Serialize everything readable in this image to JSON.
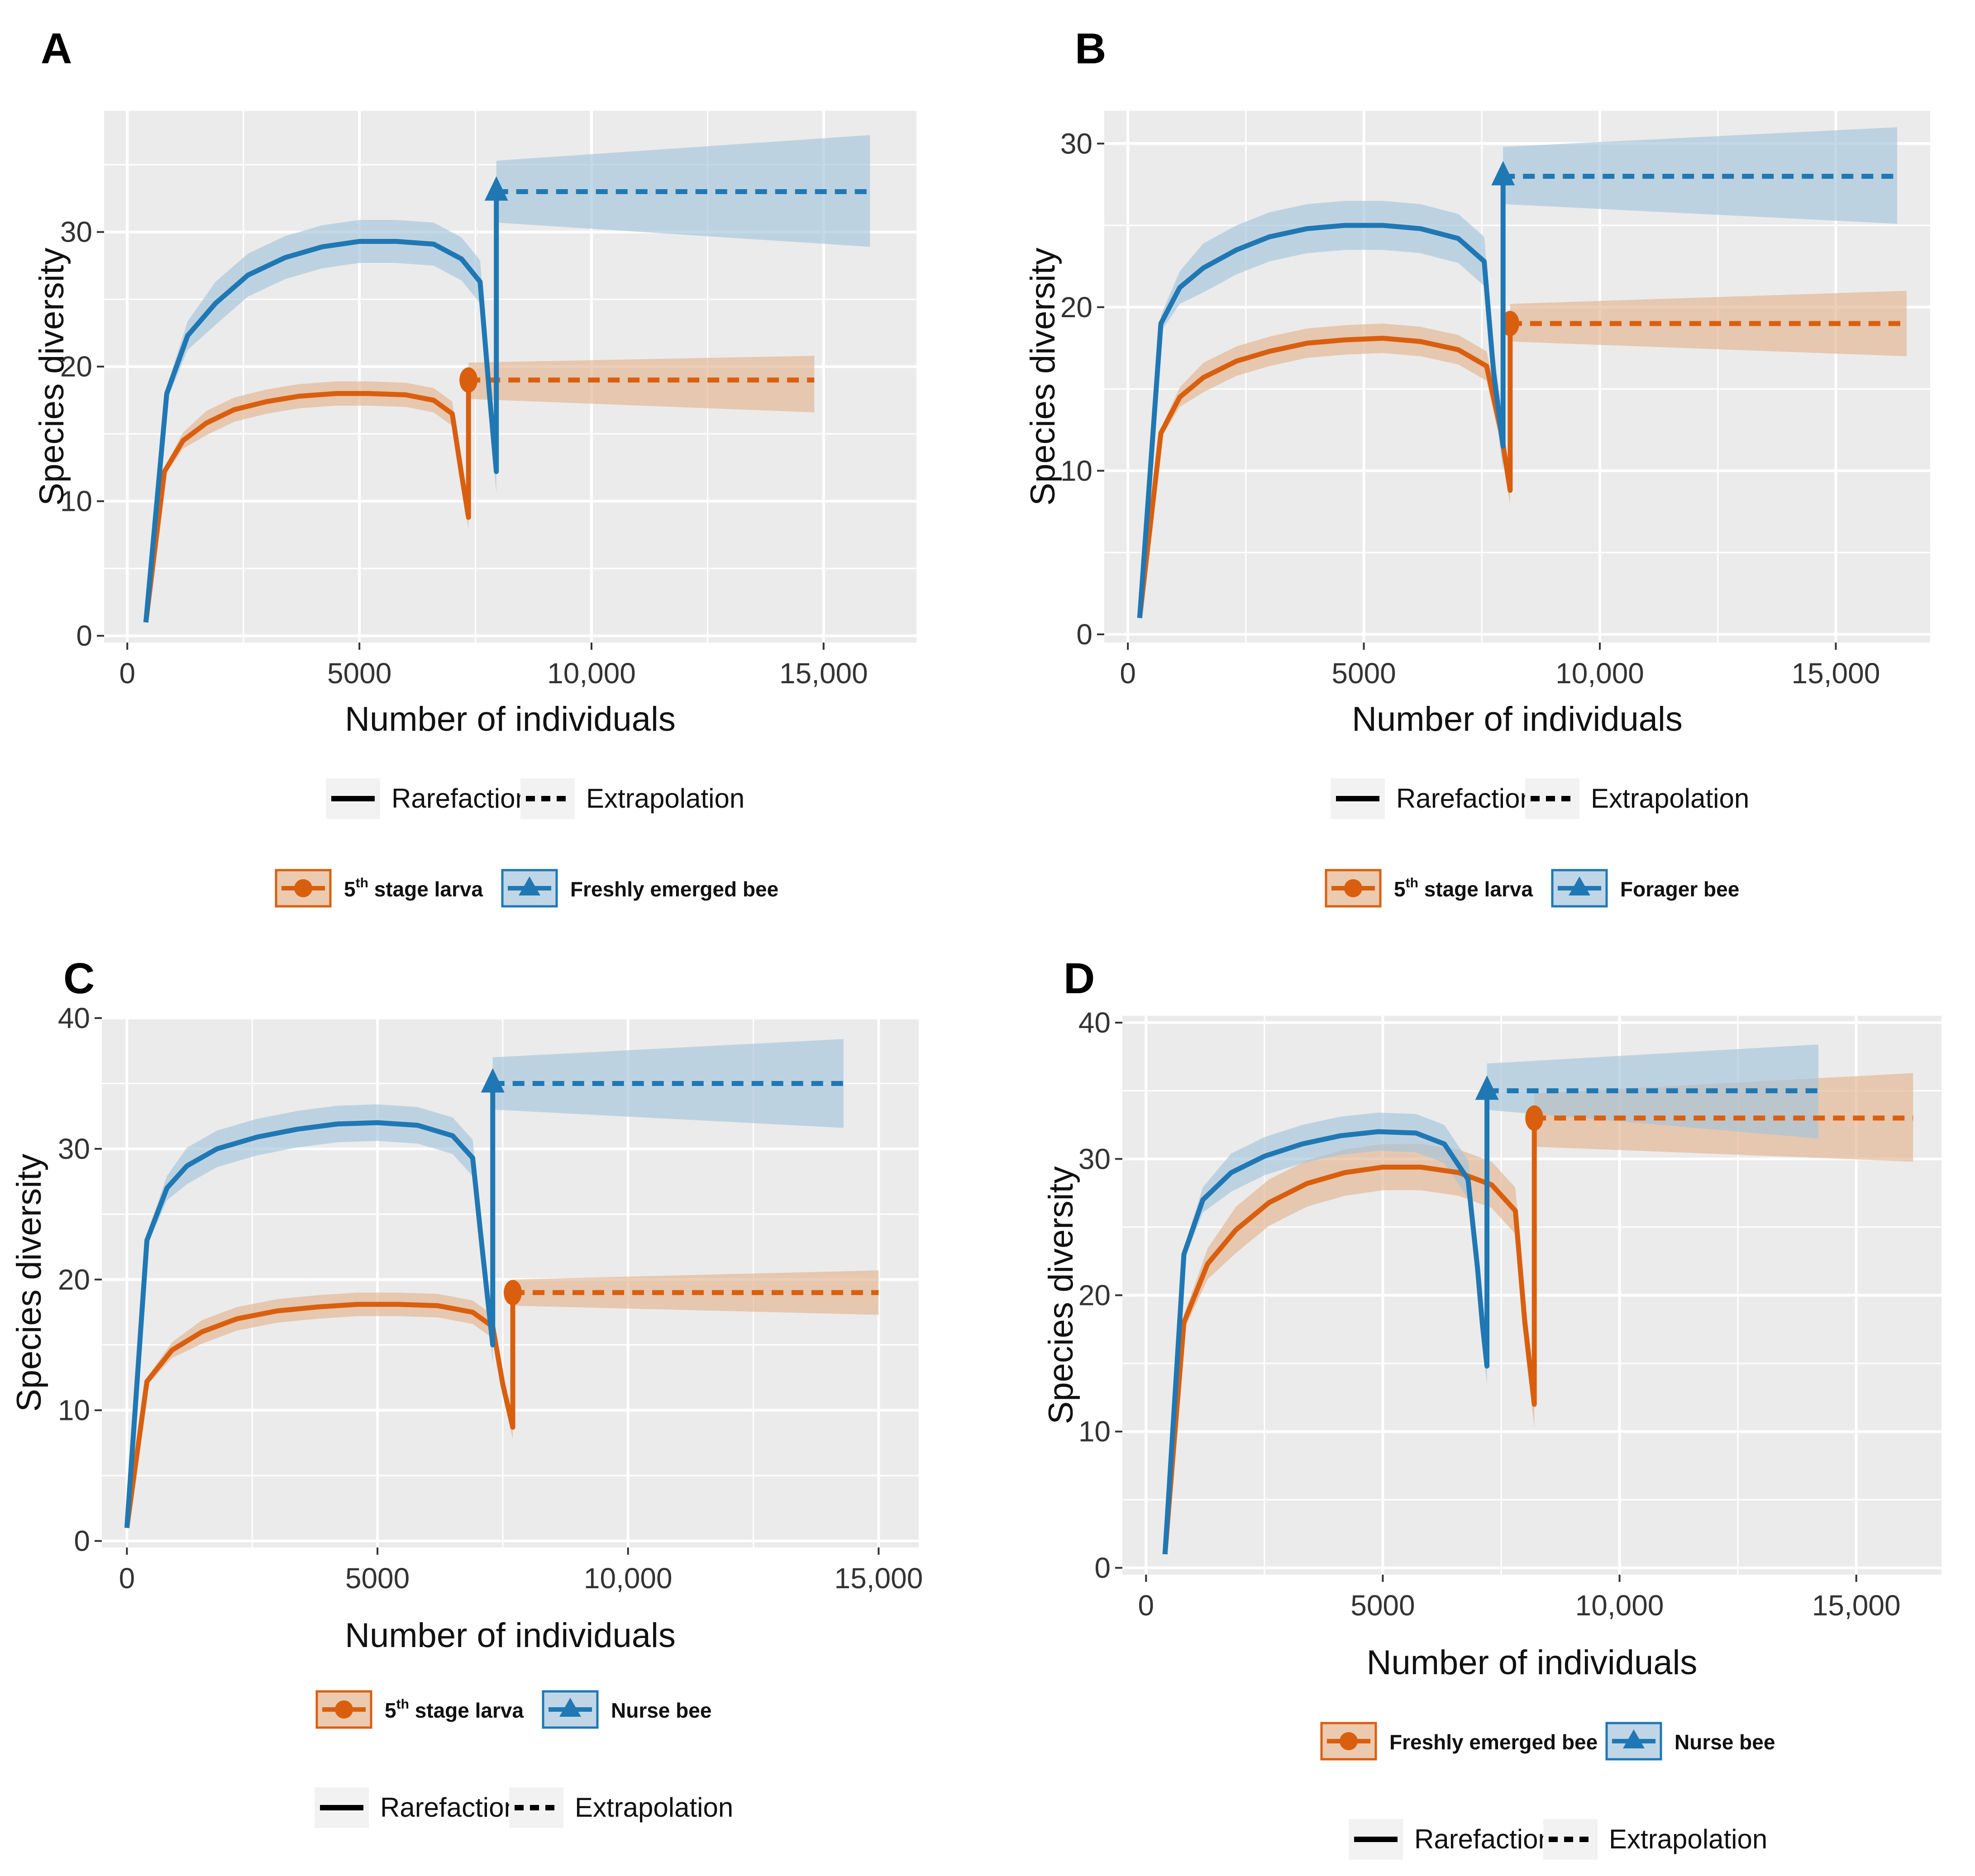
{
  "figure": {
    "colors": {
      "orange": "#d95f0e",
      "blue": "#1f78b4",
      "orange_fill": "#e3b48f",
      "blue_fill": "#a5c4db",
      "panel_bg": "#ebebeb",
      "grid": "#ffffff"
    },
    "legend_lines": {
      "rarefaction": "Rarefaction",
      "extrapolation": "Extrapolation"
    }
  },
  "chart_data": [
    {
      "panel": "A",
      "type": "line",
      "title": "",
      "xlabel": "Number of individuals",
      "ylabel": "Species diversity",
      "xlim": [
        -500,
        17000
      ],
      "ylim": [
        -0.5,
        39
      ],
      "xticks": [
        0,
        5000,
        10000,
        15000
      ],
      "xtick_labels": [
        "0",
        "5000",
        "10,000",
        "15,000"
      ],
      "yticks": [
        0,
        10,
        20,
        30
      ],
      "ytick_labels": [
        "0",
        "10",
        "20",
        "30"
      ],
      "series": [
        {
          "name": "5th stage larva",
          "sup": "th",
          "base": "5",
          "rest": " stage larva",
          "color": "orange",
          "marker": "circle",
          "rarefaction": {
            "x": [
              400,
              800,
              1200,
              1700,
              2300,
              3000,
              3700,
              4500,
              5200,
              6000,
              6600,
              7000,
              7200,
              7350
            ],
            "y": [
              1,
              12.2,
              14.5,
              15.8,
              16.8,
              17.4,
              17.8,
              18.0,
              18.0,
              17.9,
              17.5,
              16.5,
              12,
              8.8
            ],
            "half_band": 0.9
          },
          "observed": {
            "x": 7350,
            "y": 19
          },
          "extrapolation": {
            "x": [
              7350,
              14800
            ],
            "y": [
              19,
              19
            ],
            "band_lo": [
              17.6,
              16.6
            ],
            "band_hi": [
              20.3,
              20.8
            ]
          }
        },
        {
          "name": "Freshly emerged bee",
          "color": "blue",
          "marker": "triangle",
          "rarefaction": {
            "x": [
              400,
              850,
              1300,
              1900,
              2600,
              3400,
              4200,
              5000,
              5800,
              6600,
              7200,
              7600,
              7800,
              7950
            ],
            "y": [
              1,
              18,
              22.3,
              24.7,
              26.8,
              28.1,
              28.9,
              29.3,
              29.3,
              29.1,
              28,
              26.3,
              18,
              12.2
            ],
            "half_band": 1.6
          },
          "observed": {
            "x": 7950,
            "y": 33
          },
          "extrapolation": {
            "x": [
              7950,
              16000
            ],
            "y": [
              33,
              33
            ],
            "band_lo": [
              30.7,
              28.9
            ],
            "band_hi": [
              35.3,
              37.2
            ]
          }
        }
      ]
    },
    {
      "panel": "B",
      "type": "line",
      "title": "",
      "xlabel": "Number of individuals",
      "ylabel": "Species diversity",
      "xlim": [
        -500,
        17000
      ],
      "ylim": [
        -0.5,
        32
      ],
      "xticks": [
        0,
        5000,
        10000,
        15000
      ],
      "xtick_labels": [
        "0",
        "5000",
        "10,000",
        "15,000"
      ],
      "yticks": [
        0,
        10,
        20,
        30
      ],
      "ytick_labels": [
        "0",
        "10",
        "20",
        "30"
      ],
      "series": [
        {
          "name": "5th stage larva",
          "base": "5",
          "sup": "th",
          "rest": " stage larva",
          "color": "orange",
          "marker": "circle",
          "rarefaction": {
            "x": [
              250,
              700,
              1100,
              1600,
              2300,
              3000,
              3800,
              4600,
              5400,
              6200,
              7000,
              7600,
              7900,
              8100
            ],
            "y": [
              1,
              12.3,
              14.5,
              15.7,
              16.7,
              17.3,
              17.8,
              18.0,
              18.1,
              17.9,
              17.4,
              16.4,
              12.5,
              8.8
            ],
            "half_band": 0.9
          },
          "observed": {
            "x": 8100,
            "y": 19
          },
          "extrapolation": {
            "x": [
              8100,
              16500
            ],
            "y": [
              19,
              19
            ],
            "band_lo": [
              17.9,
              17.0
            ],
            "band_hi": [
              20.2,
              21.0
            ]
          }
        },
        {
          "name": "Forager bee",
          "color": "blue",
          "marker": "triangle",
          "rarefaction": {
            "x": [
              250,
              700,
              1100,
              1600,
              2300,
              3000,
              3800,
              4600,
              5400,
              6200,
              7000,
              7550,
              7750,
              7950
            ],
            "y": [
              1,
              19,
              21.2,
              22.4,
              23.5,
              24.3,
              24.8,
              25.0,
              25.0,
              24.8,
              24.2,
              22.8,
              16,
              11.5
            ],
            "half_band": 1.5
          },
          "observed": {
            "x": 7950,
            "y": 28
          },
          "extrapolation": {
            "x": [
              7950,
              16300
            ],
            "y": [
              28,
              28
            ],
            "band_lo": [
              26.3,
              25.1
            ],
            "band_hi": [
              29.8,
              31.0
            ]
          }
        }
      ]
    },
    {
      "panel": "C",
      "type": "line",
      "title": "",
      "xlabel": "Number of individuals",
      "ylabel": "Species diversity",
      "xlim": [
        -500,
        15800
      ],
      "ylim": [
        -0.5,
        40
      ],
      "xticks": [
        0,
        5000,
        10000,
        15000
      ],
      "xtick_labels": [
        "0",
        "5000",
        "10,000",
        "15,000"
      ],
      "yticks": [
        0,
        10,
        20,
        30,
        40
      ],
      "ytick_labels": [
        "0",
        "10",
        "20",
        "30",
        "40"
      ],
      "series": [
        {
          "name": "5th stage larva",
          "base": "5",
          "sup": "th",
          "rest": " stage larva",
          "color": "orange",
          "marker": "circle",
          "rarefaction": {
            "x": [
              0,
              400,
              900,
              1500,
              2200,
              3000,
              3800,
              4600,
              5400,
              6200,
              6900,
              7300,
              7500,
              7700
            ],
            "y": [
              1,
              12.2,
              14.6,
              16.0,
              17.0,
              17.6,
              17.9,
              18.1,
              18.1,
              18.0,
              17.5,
              16.4,
              12,
              8.7
            ],
            "half_band": 0.9
          },
          "observed": {
            "x": 7700,
            "y": 19
          },
          "extrapolation": {
            "x": [
              7700,
              15000
            ],
            "y": [
              19,
              19
            ],
            "band_lo": [
              18.0,
              17.3
            ],
            "band_hi": [
              20.0,
              20.7
            ]
          }
        },
        {
          "name": "Nurse bee",
          "color": "blue",
          "marker": "triangle",
          "rarefaction": {
            "x": [
              0,
              400,
              800,
              1200,
              1800,
              2600,
              3400,
              4200,
              5000,
              5800,
              6500,
              6900,
              7100,
              7300
            ],
            "y": [
              1,
              23,
              27,
              28.7,
              30,
              30.9,
              31.5,
              31.9,
              32.0,
              31.8,
              31.0,
              29.3,
              22,
              15
            ],
            "half_band": 1.4
          },
          "observed": {
            "x": 7300,
            "y": 35
          },
          "extrapolation": {
            "x": [
              7300,
              14300
            ],
            "y": [
              35,
              35
            ],
            "band_lo": [
              33.0,
              31.6
            ],
            "band_hi": [
              37.0,
              38.4
            ]
          }
        }
      ]
    },
    {
      "panel": "D",
      "type": "line",
      "title": "",
      "xlabel": "Number of individuals",
      "ylabel": "Species diversity",
      "xlim": [
        -500,
        16800
      ],
      "ylim": [
        -0.5,
        40.5
      ],
      "xticks": [
        0,
        5000,
        10000,
        15000
      ],
      "xtick_labels": [
        "0",
        "5000",
        "10,000",
        "15,000"
      ],
      "yticks": [
        0,
        10,
        20,
        30,
        40
      ],
      "ytick_labels": [
        "0",
        "10",
        "20",
        "30",
        "40"
      ],
      "series": [
        {
          "name": "Freshly emerged bee",
          "color": "orange",
          "marker": "circle",
          "rarefaction": {
            "x": [
              400,
              800,
              1300,
              1900,
              2600,
              3400,
              4200,
              5000,
              5800,
              6600,
              7300,
              7800,
              8000,
              8200
            ],
            "y": [
              1,
              18,
              22.3,
              24.8,
              26.8,
              28.2,
              29.0,
              29.4,
              29.4,
              29.0,
              28.1,
              26.2,
              18,
              12
            ],
            "half_band": 1.7
          },
          "observed": {
            "x": 8200,
            "y": 33
          },
          "extrapolation": {
            "x": [
              8200,
              16200
            ],
            "y": [
              33,
              33
            ],
            "band_lo": [
              30.9,
              29.8
            ],
            "band_hi": [
              34.8,
              36.3
            ]
          }
        },
        {
          "name": "Nurse bee",
          "color": "blue",
          "marker": "triangle",
          "rarefaction": {
            "x": [
              400,
              800,
              1200,
              1800,
              2500,
              3300,
              4100,
              4900,
              5700,
              6300,
              6800,
              7000,
              7100,
              7200
            ],
            "y": [
              1,
              23,
              27,
              29,
              30.2,
              31.1,
              31.7,
              32.0,
              31.9,
              31.1,
              28.5,
              22,
              18,
              14.8
            ],
            "half_band": 1.4
          },
          "observed": {
            "x": 7200,
            "y": 35
          },
          "extrapolation": {
            "x": [
              7200,
              14200
            ],
            "y": [
              35,
              35
            ],
            "band_lo": [
              33.6,
              31.5
            ],
            "band_hi": [
              37.0,
              38.4
            ]
          }
        }
      ]
    }
  ]
}
